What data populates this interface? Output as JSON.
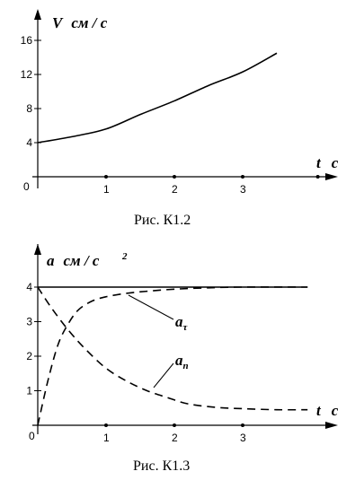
{
  "chart_data": [
    {
      "type": "line",
      "caption": "Рис. К1.2",
      "ylabel_var": "V",
      "ylabel_unit": "см / с",
      "xlabel_var": "t",
      "xlabel_unit": "с",
      "origin_label": "0",
      "xlim": [
        0,
        4.2
      ],
      "ylim": [
        0,
        18
      ],
      "xticks": [
        1,
        2,
        3
      ],
      "yticks": [
        4,
        8,
        12,
        16
      ],
      "series": [
        {
          "style": "solid",
          "x": [
            0,
            0.5,
            1,
            1.5,
            2,
            2.5,
            3,
            3.5
          ],
          "y": [
            4.0,
            4.7,
            5.6,
            7.3,
            8.9,
            10.7,
            12.3,
            14.5
          ]
        }
      ]
    },
    {
      "type": "line",
      "caption": "Рис. К1.3",
      "ylabel_var": "a",
      "ylabel_unit": "см / с",
      "ylabel_sup": "2",
      "xlabel_var": "t",
      "xlabel_unit": "с",
      "origin_label": "0",
      "xlim": [
        0,
        4.35
      ],
      "ylim": [
        0,
        4.5
      ],
      "xticks": [
        1,
        2,
        3
      ],
      "yticks": [
        1,
        2,
        3,
        4
      ],
      "series": [
        {
          "style": "solid",
          "x": [
            0,
            3.95
          ],
          "y": [
            4,
            4
          ]
        },
        {
          "name_var": "a",
          "name_sub": "τ",
          "style": "dashed",
          "x": [
            0,
            0.15,
            0.3,
            0.45,
            0.6,
            0.8,
            1.0,
            1.3,
            1.6,
            2.0,
            2.5,
            3.0,
            3.95
          ],
          "y": [
            0,
            1.3,
            2.35,
            2.95,
            3.35,
            3.6,
            3.72,
            3.82,
            3.88,
            3.94,
            3.98,
            4.0,
            4.0
          ]
        },
        {
          "name_var": "a",
          "name_sub": "n",
          "style": "dashed",
          "x": [
            0,
            0.2,
            0.45,
            0.7,
            1.0,
            1.3,
            1.6,
            1.9,
            2.2,
            2.6,
            3.0,
            3.5,
            3.95
          ],
          "y": [
            4,
            3.4,
            2.75,
            2.2,
            1.65,
            1.28,
            1.0,
            0.8,
            0.62,
            0.52,
            0.48,
            0.45,
            0.45
          ]
        }
      ]
    }
  ]
}
